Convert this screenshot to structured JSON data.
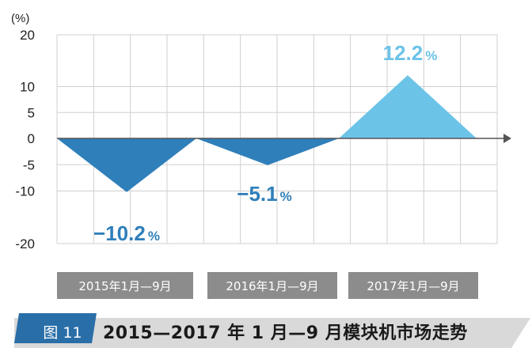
{
  "chart_data": {
    "type": "area",
    "unit_label": "(%)",
    "ylim": [
      -20,
      20
    ],
    "yticks": [
      20,
      10,
      5,
      0,
      -5,
      -10,
      -20
    ],
    "ytick_labels": [
      "20",
      "10",
      "5",
      "0",
      "-5",
      "-10",
      "-20"
    ],
    "categories": [
      "2015年1月—9月",
      "2016年1月—9月",
      "2017年1月—9月"
    ],
    "values": [
      -10.2,
      -5.1,
      12.2
    ],
    "value_labels": [
      "−10.2",
      "−5.1",
      "12.2"
    ],
    "value_suffix": "%",
    "grid": true,
    "colors": {
      "negative": "#2f7fba",
      "positive": "#6cc3e8",
      "grid": "#cfcfcf",
      "axis": "#555555"
    }
  },
  "figure": {
    "number_label": "图 11",
    "title": "2015—2017 年 1 月—9 月模块机市场走势",
    "colors": {
      "label_bg": "#2a6ea8",
      "bar_bg": "#d9d9d9",
      "box_bg": "#8c8c8c"
    }
  }
}
